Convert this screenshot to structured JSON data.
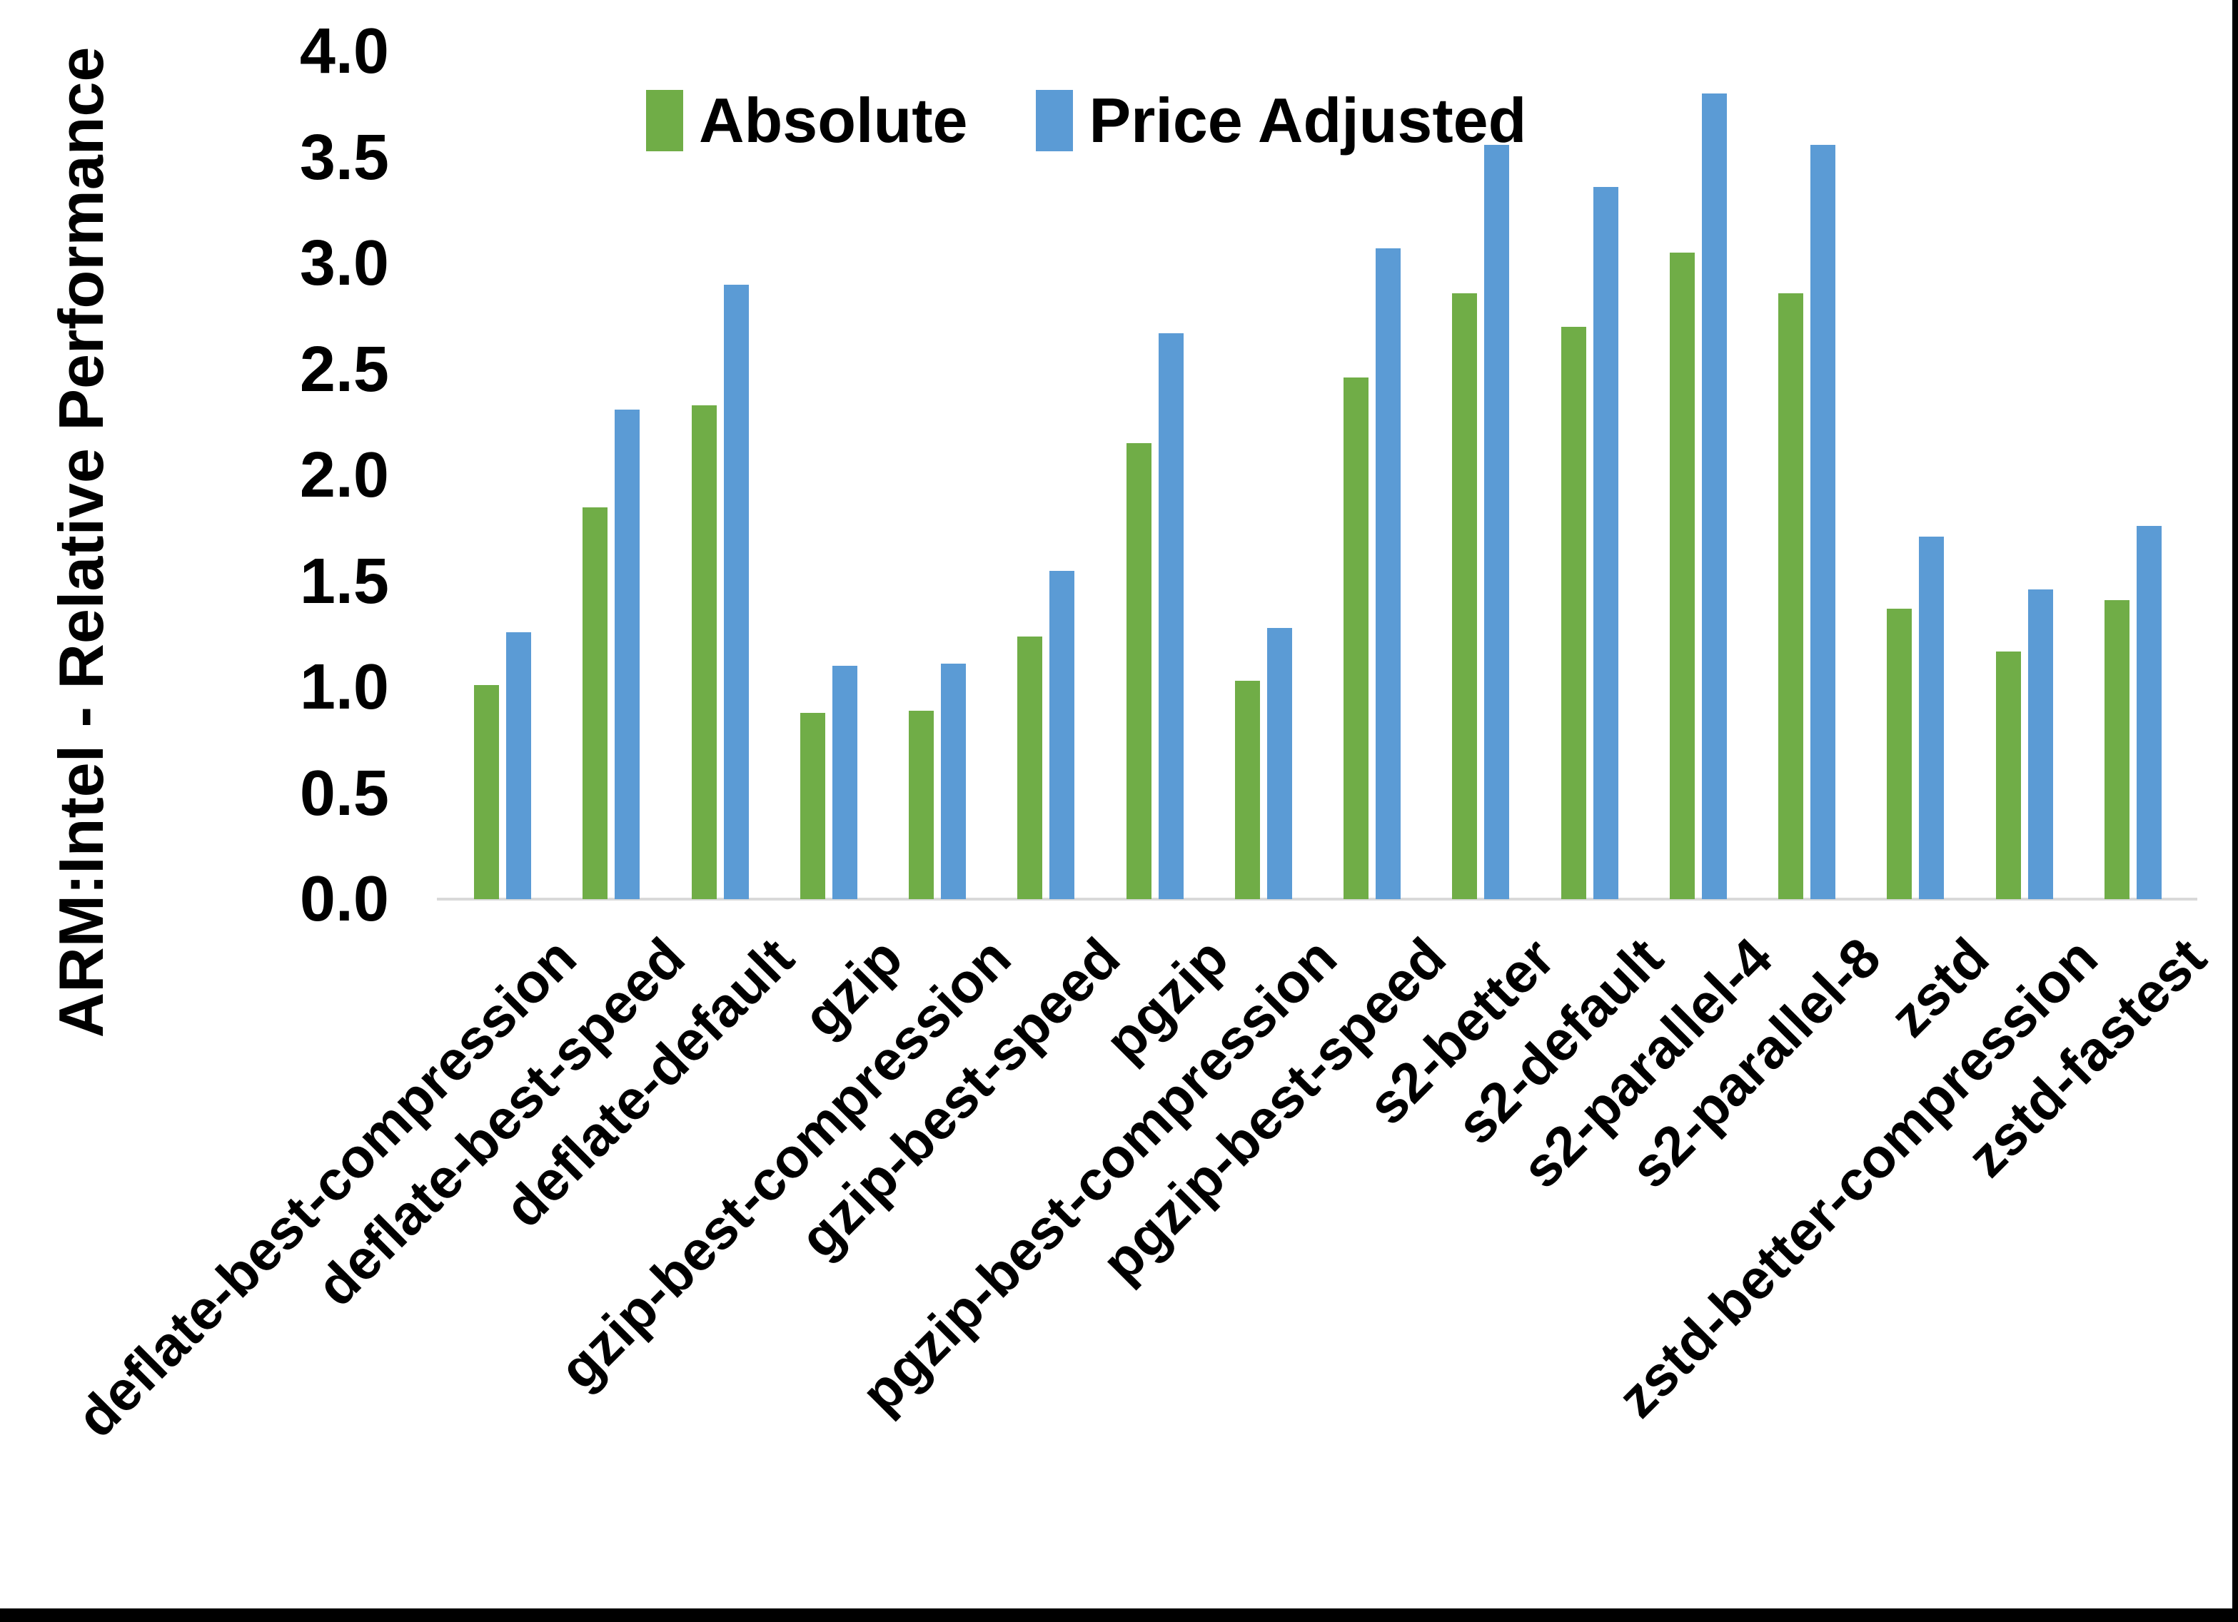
{
  "chart_data": {
    "type": "bar",
    "title": "",
    "ylabel": "ARM:Intel - Relative Performance",
    "xlabel": "",
    "ylim": [
      0,
      4
    ],
    "ytick_step": 0.5,
    "yticks": [
      "0.0",
      "0.5",
      "1.0",
      "1.5",
      "2.0",
      "2.5",
      "3.0",
      "3.5",
      "4.0"
    ],
    "grid": false,
    "legend_position": "top-center",
    "categories": [
      "deflate-best-compression",
      "deflate-best-speed",
      "deflate-default",
      "gzip",
      "gzip-best-compression",
      "gzip-best-speed",
      "pgzip",
      "pgzip-best-compression",
      "pgzip-best-speed",
      "s2-better",
      "s2-default",
      "s2-parallel-4",
      "s2-parallel-8",
      "zstd",
      "zstd-better-compression",
      "zstd-fastest"
    ],
    "series": [
      {
        "name": "Absolute",
        "color": "#70AD47",
        "values": [
          1.01,
          1.85,
          2.33,
          0.88,
          0.89,
          1.24,
          2.15,
          1.03,
          2.46,
          2.86,
          2.7,
          3.05,
          2.86,
          1.37,
          1.17,
          1.41
        ]
      },
      {
        "name": "Price Adjusted",
        "color": "#5B9BD5",
        "values": [
          1.26,
          2.31,
          2.9,
          1.1,
          1.11,
          1.55,
          2.67,
          1.28,
          3.07,
          3.56,
          3.36,
          3.8,
          3.56,
          1.71,
          1.46,
          1.76
        ]
      }
    ]
  },
  "legend": {
    "items": [
      {
        "label": "Absolute",
        "color": "#70AD47"
      },
      {
        "label": "Price Adjusted",
        "color": "#5B9BD5"
      }
    ]
  },
  "colors": {
    "background": "#FFFFFF",
    "axis_line": "#D9D9D9",
    "text": "#000000",
    "frame": "#000000"
  }
}
